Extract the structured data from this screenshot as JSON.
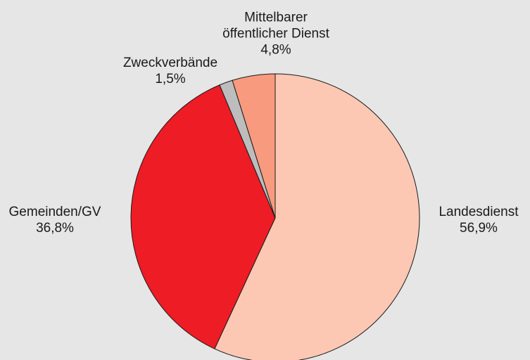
{
  "chart_data": {
    "type": "pie",
    "categories": [
      "Landesdienst",
      "Gemeinden/GV",
      "Zweckverbände",
      "Mittelbarer öffentlicher Dienst"
    ],
    "values": [
      56.9,
      36.8,
      1.5,
      4.8
    ],
    "value_labels": [
      "56,9%",
      "36,8%",
      "1,5%",
      "4,8%"
    ],
    "colors": [
      "#fcc8b4",
      "#ee1c25",
      "#bdbdbd",
      "#f79a7e"
    ]
  }
}
